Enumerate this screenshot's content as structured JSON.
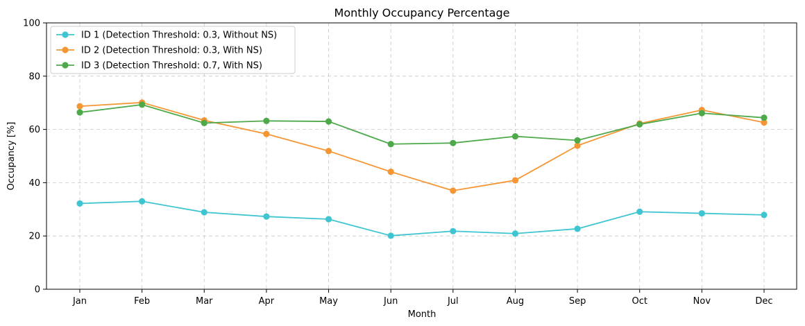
{
  "chart_data": {
    "type": "line",
    "title": "Monthly Occupancy Percentage",
    "xlabel": "Month",
    "ylabel": "Occupancy [%]",
    "categories": [
      "Jan",
      "Feb",
      "Mar",
      "Apr",
      "May",
      "Jun",
      "Jul",
      "Aug",
      "Sep",
      "Oct",
      "Nov",
      "Dec"
    ],
    "ylim": [
      0,
      100
    ],
    "yticks": [
      0,
      20,
      40,
      60,
      80,
      100
    ],
    "grid": true,
    "legend_position": "top-left",
    "series": [
      {
        "name": "ID 1 (Detection Threshold: 0.3, Without NS)",
        "color": "#3fc5d1",
        "values": [
          32.2,
          33.0,
          28.9,
          27.3,
          26.3,
          20.1,
          21.8,
          20.9,
          22.7,
          29.1,
          28.5,
          27.9
        ]
      },
      {
        "name": "ID 2 (Detection Threshold: 0.3, With NS)",
        "color": "#f59634",
        "values": [
          68.7,
          70.1,
          63.4,
          58.3,
          51.9,
          44.1,
          37.0,
          40.9,
          53.9,
          62.2,
          67.3,
          62.6
        ]
      },
      {
        "name": "ID 3 (Detection Threshold: 0.7, With NS)",
        "color": "#4ea94a",
        "values": [
          66.4,
          69.3,
          62.4,
          63.2,
          63.0,
          54.5,
          54.9,
          57.4,
          55.9,
          61.9,
          66.1,
          64.4
        ]
      }
    ]
  }
}
